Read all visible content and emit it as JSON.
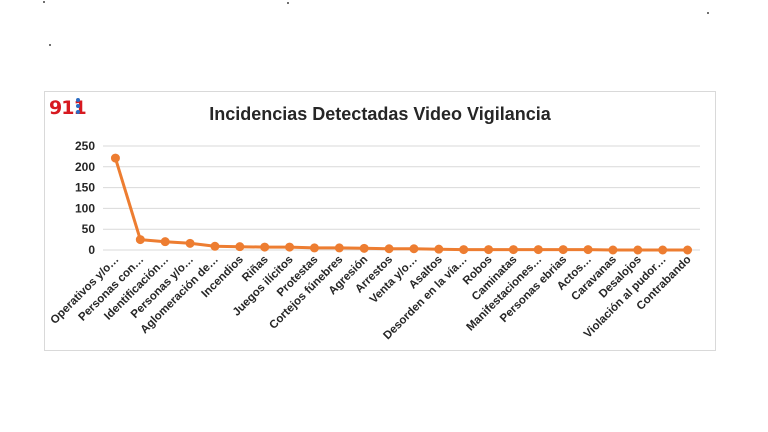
{
  "logo": {
    "text": "911"
  },
  "colors": {
    "series": "#ed7d31",
    "grid": "#d9d9d9",
    "text": "#262626",
    "logo_red": "#d71920",
    "logo_blue": "#2b6cc4"
  },
  "chart_data": {
    "type": "line",
    "title": "Incidencias Detectadas Video Vigilancia",
    "xlabel": "",
    "ylabel": "",
    "ylim": [
      0,
      250
    ],
    "yticks": [
      0,
      50,
      100,
      150,
      200,
      250
    ],
    "grid": true,
    "legend": "none",
    "categories": [
      "Operativos y/o…",
      "Personas con…",
      "Identificación…",
      "Personas y/o…",
      "Aglomeración de…",
      "Incendios",
      "Riñas",
      "Juegos ilícitos",
      "Protestas",
      "Cortejos fúnebres",
      "Agresión",
      "Arrestos",
      "Venta y/o…",
      "Asaltos",
      "Desorden en la vía…",
      "Robos",
      "Caminatas",
      "Manifestaciones…",
      "Personas ebrias",
      "Actos…",
      "Caravanas",
      "Desalojos",
      "Violación al pudor…",
      "Contrabando"
    ],
    "series": [
      {
        "values": [
          221,
          25,
          20,
          16,
          9,
          8,
          7,
          7,
          5,
          5,
          4,
          3,
          3,
          2,
          1,
          1,
          1,
          1,
          1,
          1,
          0,
          0,
          0,
          0
        ]
      }
    ]
  }
}
